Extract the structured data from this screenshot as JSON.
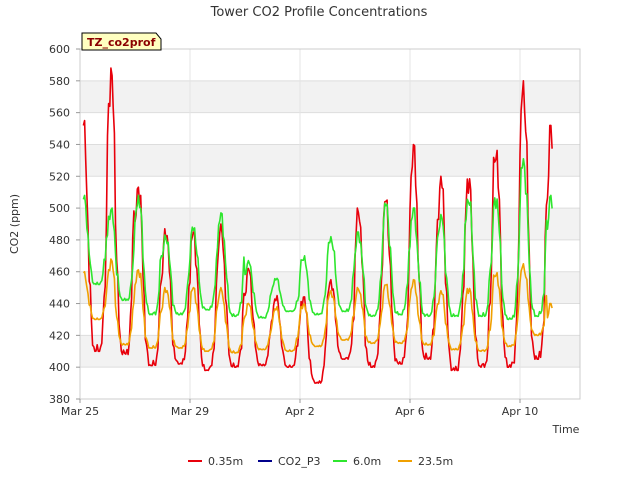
{
  "chart_data": {
    "type": "line",
    "title": "Tower CO2 Profile Concentrations",
    "xlabel": "Time",
    "ylabel": "CO2 (ppm)",
    "annotation": "TZ_co2prof",
    "ylim": [
      380,
      600
    ],
    "yticks": [
      380,
      400,
      420,
      440,
      460,
      480,
      500,
      520,
      540,
      560,
      580,
      600
    ],
    "xlim": [
      "2021-03-25",
      "2021-04-11"
    ],
    "xticks": [
      {
        "date": "2021-03-25",
        "label": "Mar 25"
      },
      {
        "date": "2021-03-29",
        "label": "Mar 29"
      },
      {
        "date": "2021-04-02",
        "label": "Apr 2"
      },
      {
        "date": "2021-04-06",
        "label": "Apr 6"
      },
      {
        "date": "2021-04-10",
        "label": "Apr 10"
      }
    ],
    "grid": true,
    "legend_position": "bottom",
    "series": [
      {
        "name": "0.35m",
        "color": "#e8000b",
        "daily": [
          {
            "date": "2021-03-25",
            "min": 410,
            "max": 555
          },
          {
            "date": "2021-03-26",
            "min": 408,
            "max": 588
          },
          {
            "date": "2021-03-27",
            "min": 401,
            "max": 515
          },
          {
            "date": "2021-03-28",
            "min": 402,
            "max": 487
          },
          {
            "date": "2021-03-29",
            "min": 398,
            "max": 485
          },
          {
            "date": "2021-03-30",
            "min": 400,
            "max": 490
          },
          {
            "date": "2021-03-31",
            "min": 401,
            "max": 462
          },
          {
            "date": "2021-04-01",
            "min": 400,
            "max": 445
          },
          {
            "date": "2021-04-02",
            "min": 390,
            "max": 445
          },
          {
            "date": "2021-04-03",
            "min": 405,
            "max": 455
          },
          {
            "date": "2021-04-04",
            "min": 400,
            "max": 500
          },
          {
            "date": "2021-04-05",
            "min": 402,
            "max": 505
          },
          {
            "date": "2021-04-06",
            "min": 405,
            "max": 540
          },
          {
            "date": "2021-04-07",
            "min": 398,
            "max": 520
          },
          {
            "date": "2021-04-08",
            "min": 400,
            "max": 520
          },
          {
            "date": "2021-04-09",
            "min": 400,
            "max": 538
          },
          {
            "date": "2021-04-10",
            "min": 405,
            "max": 580
          },
          {
            "date": "2021-04-11",
            "min": 398,
            "max": 552
          }
        ]
      },
      {
        "name": "CO2_P3",
        "color": "#00008b",
        "daily": []
      },
      {
        "name": "6.0m",
        "color": "#2ee62e",
        "daily": [
          {
            "date": "2021-03-25",
            "min": 452,
            "max": 508
          },
          {
            "date": "2021-03-26",
            "min": 442,
            "max": 500
          },
          {
            "date": "2021-03-27",
            "min": 433,
            "max": 508
          },
          {
            "date": "2021-03-28",
            "min": 433,
            "max": 483
          },
          {
            "date": "2021-03-29",
            "min": 436,
            "max": 488
          },
          {
            "date": "2021-03-30",
            "min": 432,
            "max": 497
          },
          {
            "date": "2021-03-31",
            "min": 431,
            "max": 467
          },
          {
            "date": "2021-04-01",
            "min": 435,
            "max": 456
          },
          {
            "date": "2021-04-02",
            "min": 433,
            "max": 470
          },
          {
            "date": "2021-04-03",
            "min": 435,
            "max": 482
          },
          {
            "date": "2021-04-04",
            "min": 432,
            "max": 485
          },
          {
            "date": "2021-04-05",
            "min": 433,
            "max": 503
          },
          {
            "date": "2021-04-06",
            "min": 432,
            "max": 500
          },
          {
            "date": "2021-04-07",
            "min": 432,
            "max": 496
          },
          {
            "date": "2021-04-08",
            "min": 432,
            "max": 507
          },
          {
            "date": "2021-04-09",
            "min": 430,
            "max": 507
          },
          {
            "date": "2021-04-10",
            "min": 432,
            "max": 531
          },
          {
            "date": "2021-04-11",
            "min": 430,
            "max": 508
          }
        ]
      },
      {
        "name": "23.5m",
        "color": "#f0a000",
        "daily": [
          {
            "date": "2021-03-25",
            "min": 430,
            "max": 460
          },
          {
            "date": "2021-03-26",
            "min": 414,
            "max": 468
          },
          {
            "date": "2021-03-27",
            "min": 412,
            "max": 462
          },
          {
            "date": "2021-03-28",
            "min": 412,
            "max": 450
          },
          {
            "date": "2021-03-29",
            "min": 410,
            "max": 450
          },
          {
            "date": "2021-03-30",
            "min": 409,
            "max": 450
          },
          {
            "date": "2021-03-31",
            "min": 411,
            "max": 440
          },
          {
            "date": "2021-04-01",
            "min": 410,
            "max": 438
          },
          {
            "date": "2021-04-02",
            "min": 413,
            "max": 440
          },
          {
            "date": "2021-04-03",
            "min": 417,
            "max": 448
          },
          {
            "date": "2021-04-04",
            "min": 415,
            "max": 450
          },
          {
            "date": "2021-04-05",
            "min": 415,
            "max": 452
          },
          {
            "date": "2021-04-06",
            "min": 414,
            "max": 455
          },
          {
            "date": "2021-04-07",
            "min": 411,
            "max": 448
          },
          {
            "date": "2021-04-08",
            "min": 410,
            "max": 450
          },
          {
            "date": "2021-04-09",
            "min": 413,
            "max": 460
          },
          {
            "date": "2021-04-10",
            "min": 420,
            "max": 465
          },
          {
            "date": "2021-04-11",
            "min": 410,
            "max": 440
          }
        ]
      }
    ]
  }
}
